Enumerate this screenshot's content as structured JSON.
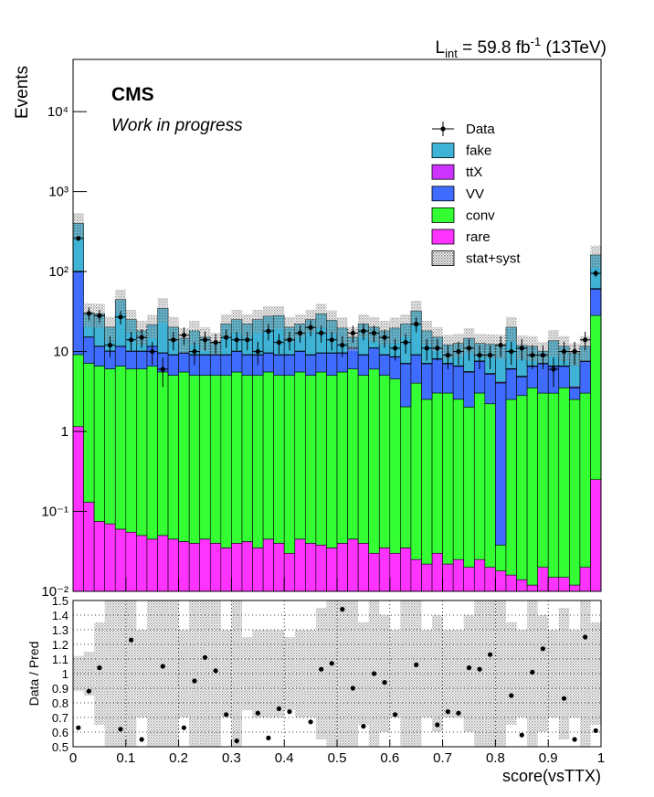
{
  "chart_data": [
    {
      "type": "stacked_histogram",
      "lumi": [
        {
          "text": "L"
        },
        {
          "text": "int",
          "shift": "sub"
        },
        {
          "text": " = 59.8 fb"
        },
        {
          "text": "-1",
          "shift": "sup"
        },
        {
          "text": " (13TeV)"
        }
      ],
      "experiment": "CMS",
      "status": "Work in progress",
      "ylabel": "Events",
      "log": true,
      "ylim": [
        0.01,
        45000
      ],
      "yticks": [
        {
          "value": 0.01,
          "label": "10⁻²"
        },
        {
          "value": 0.1,
          "label": "10⁻¹"
        },
        1,
        10,
        {
          "value": 100,
          "label": "10²"
        },
        {
          "value": 1000,
          "label": "10³"
        },
        {
          "value": 10000,
          "label": "10⁴"
        }
      ],
      "xlim": [
        0,
        1
      ],
      "xticks": [
        0,
        0.1,
        0.2,
        0.3,
        0.4,
        0.5,
        0.6,
        0.7,
        0.8,
        0.9,
        1
      ],
      "bins": [
        0,
        0.02,
        0.04,
        0.06,
        0.08,
        0.1,
        0.12,
        0.14,
        0.16,
        0.18,
        0.2,
        0.22,
        0.24,
        0.26,
        0.28,
        0.3,
        0.32,
        0.34,
        0.36,
        0.38,
        0.4,
        0.42,
        0.44,
        0.46,
        0.48,
        0.5,
        0.52,
        0.54,
        0.56,
        0.58,
        0.6,
        0.62,
        0.64,
        0.66,
        0.68,
        0.7,
        0.72,
        0.74,
        0.76,
        0.78,
        0.8,
        0.82,
        0.84,
        0.86,
        0.88,
        0.9,
        0.92,
        0.94,
        0.96,
        0.98,
        1
      ],
      "data": {
        "name": "Data",
        "color": "#000000",
        "values": [
          260,
          30,
          28,
          12,
          27,
          14,
          15,
          10,
          6,
          14,
          16,
          10,
          14,
          13,
          15,
          14,
          14,
          10,
          18,
          13,
          14,
          17,
          20,
          17,
          14,
          12,
          17,
          18,
          17,
          15,
          11,
          13,
          22,
          11,
          11,
          9,
          10,
          11,
          9,
          9,
          12,
          10,
          11,
          9,
          9,
          6,
          10,
          10,
          14,
          95
        ],
        "errors": [
          16,
          5.5,
          5.3,
          3.5,
          5.2,
          3.7,
          3.9,
          3.2,
          2.4,
          3.7,
          4,
          3.2,
          3.7,
          3.6,
          3.9,
          3.7,
          3.7,
          3.2,
          4.2,
          3.6,
          3.7,
          4.1,
          4.5,
          4.1,
          3.7,
          3.5,
          4.1,
          4.2,
          4.1,
          3.9,
          3.3,
          3.6,
          4.7,
          3.3,
          3.3,
          3,
          3.2,
          3.3,
          3,
          3,
          3.5,
          3.2,
          3.3,
          3,
          3,
          2.4,
          3.2,
          3.2,
          3.7,
          9.7
        ]
      },
      "series": [
        {
          "name": "fake",
          "color": "#3eb3d6",
          "values": [
            300,
            15,
            18,
            10,
            33,
            15,
            8,
            10,
            25,
            11,
            5,
            9,
            6,
            4,
            13,
            15,
            13,
            16,
            18,
            19,
            11,
            12,
            16,
            20,
            15,
            10,
            4,
            13,
            9,
            9,
            11,
            15,
            23,
            11,
            7,
            5,
            6,
            9,
            5,
            7,
            8,
            14,
            7,
            5,
            3,
            7,
            5,
            6,
            4,
            100
          ]
        },
        {
          "name": "ttX",
          "color": "#cc33ff",
          "values": [
            1.5,
            0.1,
            0.1,
            0.1,
            0.1,
            0.1,
            0.1,
            0.1,
            0.1,
            0.1,
            0.1,
            0.1,
            0.1,
            0.1,
            0.1,
            0.1,
            0.1,
            0.1,
            0.1,
            0.1,
            0.1,
            0.1,
            0.1,
            0.1,
            0.1,
            0.1,
            0.1,
            0.1,
            0.1,
            0.1,
            0.1,
            0.1,
            0.1,
            0.1,
            0.1,
            0.1,
            0.1,
            0.1,
            0.1,
            0.1,
            0.1,
            0.1,
            0.1,
            0.1,
            0.1,
            0.1,
            0.1,
            0.1,
            0.1,
            1
          ]
        },
        {
          "name": "VV",
          "color": "#3f6cff",
          "values": [
            90,
            8,
            5,
            4,
            5,
            4,
            4,
            5,
            4,
            4,
            4,
            4,
            4,
            4,
            4,
            4.5,
            4,
            4,
            4,
            4,
            4,
            4.5,
            4,
            4,
            4.5,
            4,
            5,
            4,
            5,
            4,
            4,
            5,
            5,
            4.5,
            5,
            4,
            4,
            3.5,
            4.5,
            3,
            4,
            3.5,
            2,
            3,
            4,
            3.5,
            3,
            1,
            4.5,
            32
          ]
        },
        {
          "name": "conv",
          "color": "#33ff33",
          "values": [
            8,
            7,
            6.5,
            6,
            6.5,
            6,
            6,
            6.5,
            5.5,
            5,
            5.5,
            5,
            5,
            5,
            5,
            5.5,
            5,
            5,
            5.5,
            5,
            5,
            5.5,
            5,
            5.5,
            5,
            5.5,
            6,
            5,
            6,
            5,
            4.5,
            2,
            4,
            2.5,
            3,
            3,
            2.5,
            2,
            3,
            2.2,
            0.02,
            2.5,
            2.8,
            3.5,
            3,
            3,
            3.5,
            2.5,
            3,
            28
          ]
        },
        {
          "name": "rare",
          "color": "#ff33ff",
          "values": [
            1.15,
            0.13,
            0.075,
            0.07,
            0.06,
            0.055,
            0.05,
            0.045,
            0.05,
            0.045,
            0.042,
            0.04,
            0.045,
            0.04,
            0.035,
            0.04,
            0.042,
            0.035,
            0.045,
            0.04,
            0.03,
            0.045,
            0.04,
            0.038,
            0.035,
            0.04,
            0.045,
            0.04,
            0.03,
            0.035,
            0.03,
            0.035,
            0.025,
            0.022,
            0.03,
            0.022,
            0.025,
            0.02,
            0.025,
            0.02,
            0.018,
            0.016,
            0.014,
            0.012,
            0.02,
            0.015,
            0.015,
            0.012,
            0.02,
            0.25
          ]
        }
      ],
      "band": {
        "name": "stat+syst",
        "values": [
          140,
          10,
          10,
          7,
          15,
          8,
          6,
          7,
          12,
          7,
          5,
          6,
          5,
          4,
          7,
          8,
          7,
          8,
          9,
          9,
          7,
          7,
          8,
          10,
          8,
          7,
          5,
          7,
          7,
          6,
          7,
          7,
          11,
          6,
          5,
          4,
          4,
          5,
          4,
          4,
          4,
          7,
          4,
          4,
          3,
          5,
          4,
          3,
          4,
          50
        ]
      }
    },
    {
      "type": "ratio",
      "ylabel": "Data / Pred",
      "xlabel": "score(vsTTX)",
      "ylim": [
        0.5,
        1.5
      ],
      "yticks": [
        0.5,
        0.6,
        0.7,
        0.8,
        0.9,
        1,
        1.1,
        1.2,
        1.3,
        1.4,
        1.5
      ],
      "xlim": [
        0,
        1
      ],
      "xticks": [
        0,
        0.1,
        0.2,
        0.3,
        0.4,
        0.5,
        0.6,
        0.7,
        0.8,
        0.9,
        1
      ],
      "grid": true,
      "reference": 1,
      "values": [
        0.63,
        0.88,
        1.04,
        null,
        0.62,
        1.23,
        0.55,
        null,
        1.05,
        null,
        0.63,
        0.95,
        1.11,
        1.02,
        0.72,
        0.54,
        null,
        0.73,
        0.56,
        0.76,
        0.74,
        null,
        0.67,
        1.03,
        1.07,
        1.44,
        0.9,
        0.64,
        1.0,
        0.94,
        0.72,
        null,
        1.06,
        null,
        0.65,
        0.74,
        0.73,
        1.04,
        1.03,
        1.13,
        null,
        0.85,
        0.58,
        1.01,
        1.17,
        null,
        0.83,
        0.55,
        1.25,
        0.61
      ],
      "band": [
        0.12,
        0.15,
        0.35,
        0.5,
        0.5,
        0.5,
        0.3,
        0.5,
        0.5,
        0.5,
        0.3,
        0.5,
        0.5,
        0.5,
        0.3,
        0.5,
        0.25,
        0.3,
        0.3,
        0.3,
        0.25,
        0.3,
        0.3,
        0.45,
        0.5,
        0.5,
        0.5,
        0.35,
        0.5,
        0.4,
        0.3,
        0.5,
        0.5,
        0.3,
        0.4,
        0.3,
        0.3,
        0.4,
        0.5,
        0.5,
        0.5,
        0.35,
        0.3,
        0.5,
        0.4,
        0.3,
        0.45,
        0.3,
        0.5,
        0.35
      ]
    }
  ]
}
